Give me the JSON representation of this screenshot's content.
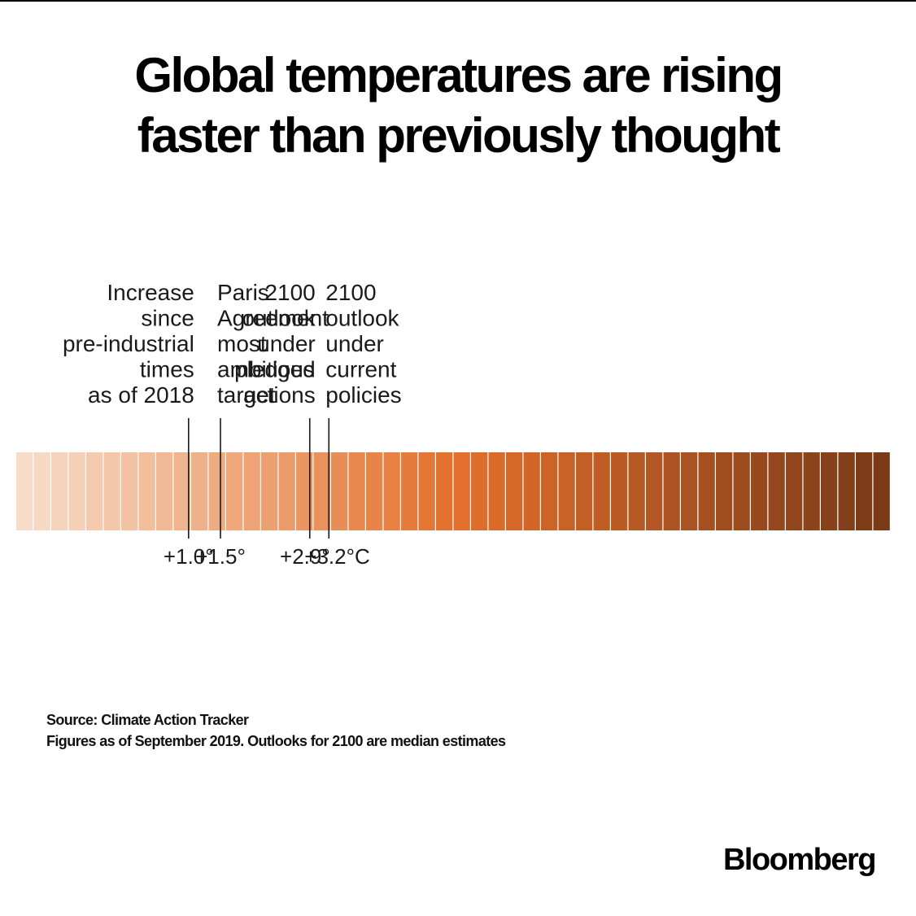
{
  "title_lines": [
    "Global temperatures are rising",
    "faster than previously thought"
  ],
  "source_lines": [
    "Source: Climate Action Tracker",
    "Figures as of September 2019. Outlooks for 2100 are median estimates"
  ],
  "logo": "Bloomberg",
  "chart_data": {
    "type": "heatmap",
    "title": "Global temperatures are rising faster than previously thought",
    "scale_colors": {
      "start": "#f7ddc9",
      "mid": "#e4702c",
      "end": "#7a3a18"
    },
    "segment_count": 50,
    "markers": [
      {
        "value": 1.0,
        "label": "+1.0°",
        "annotation_lines": [
          "Increase",
          "since",
          "pre-industrial",
          "times",
          "as of 2018"
        ],
        "annotation_color": "#1a1a1a"
      },
      {
        "value": 1.5,
        "label": "+1.5°",
        "annotation_lines": [
          "Paris",
          "Agreement",
          "most",
          "ambitious",
          "target"
        ],
        "annotation_color": "#5fa6d4"
      },
      {
        "value": 2.9,
        "label": "+2.9°",
        "annotation_lines": [
          "2100",
          "outlook",
          "under",
          "pledged",
          "actions"
        ],
        "annotation_color": "#1a1a1a"
      },
      {
        "value": 3.2,
        "label": "+3.2°C",
        "annotation_lines": [
          "2100",
          "outlook",
          "under",
          "current",
          "policies"
        ],
        "annotation_color": "#1a1a1a"
      }
    ]
  }
}
